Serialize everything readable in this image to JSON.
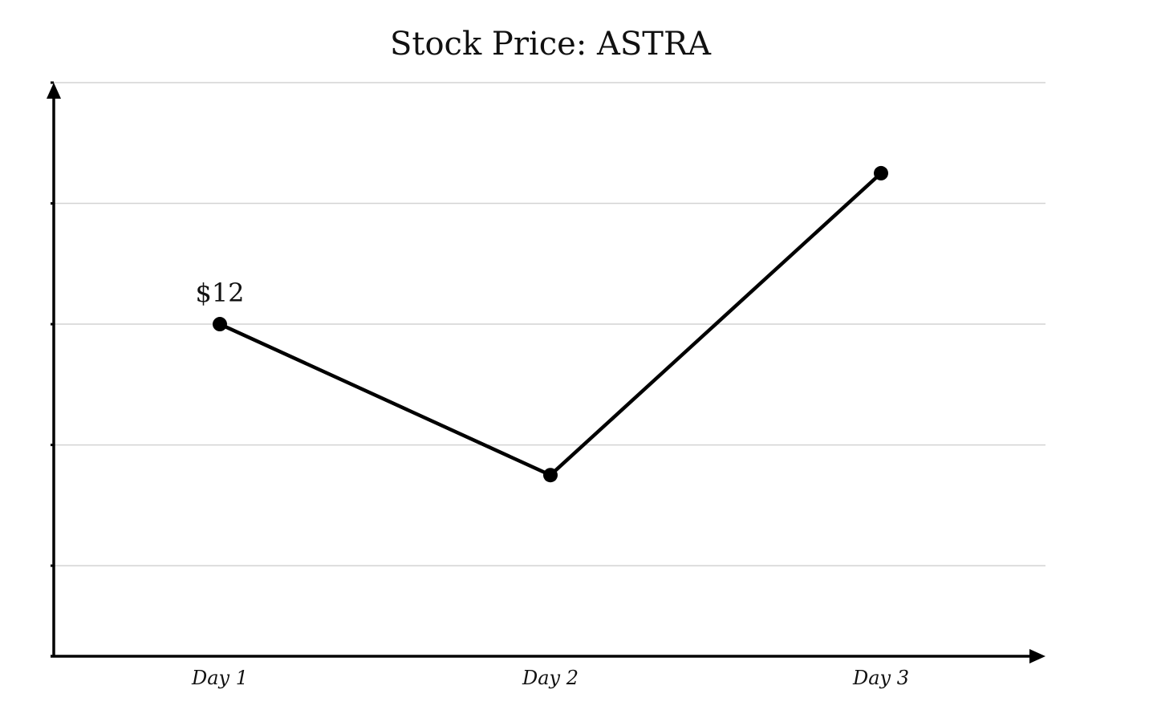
{
  "chart_data": {
    "type": "line",
    "title": "Stock Price: ASTRA",
    "xlabel": "",
    "ylabel": "",
    "categories": [
      "Day 1",
      "Day 2",
      "Day 3"
    ],
    "series": [
      {
        "values": [
          12,
          9.5,
          14.5
        ]
      }
    ],
    "data_labels": [
      {
        "index": 0,
        "text": "$12"
      }
    ],
    "ylim": [
      6.5,
      16
    ],
    "y_tick_values": [
      8,
      10,
      12,
      14,
      16
    ],
    "grid": true,
    "colors": {
      "line": "#000000",
      "grid": "#d3d3d3",
      "axis": "#000000"
    }
  }
}
